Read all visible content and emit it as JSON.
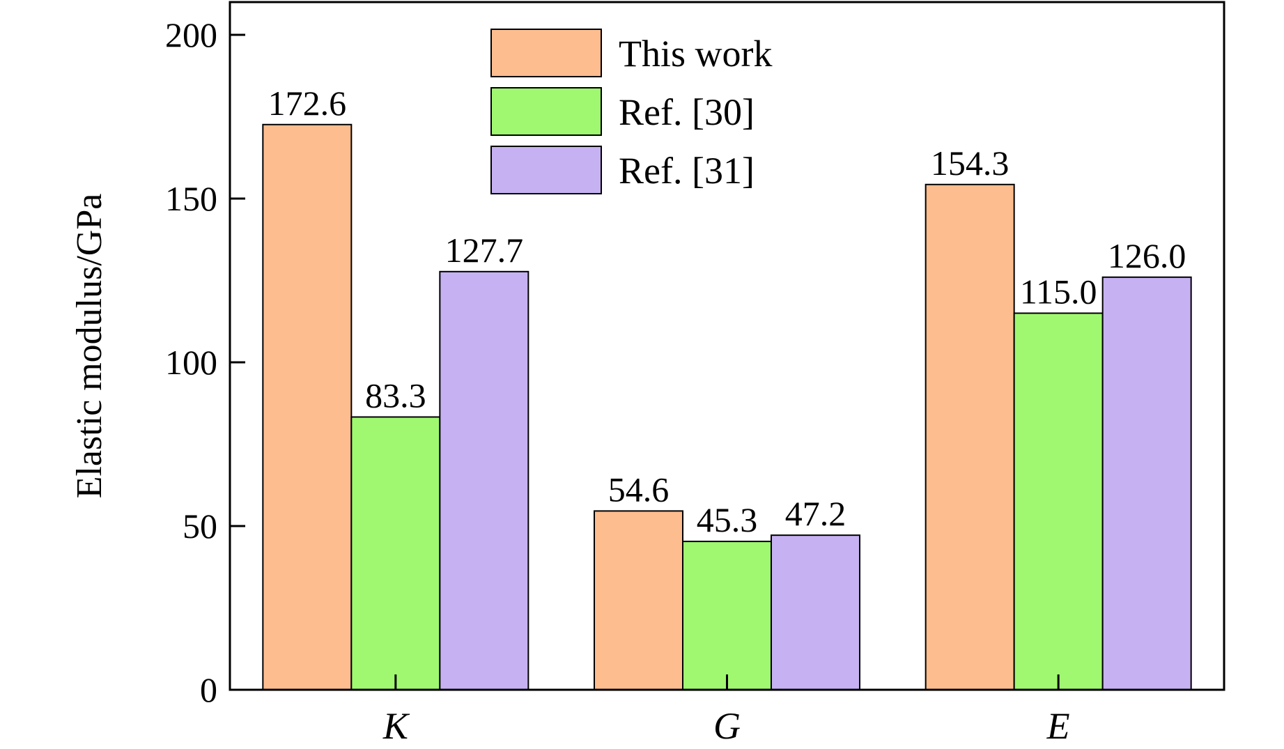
{
  "chart_data": {
    "type": "bar",
    "categories": [
      "K",
      "G",
      "E"
    ],
    "series": [
      {
        "name": "This work",
        "color": "#FDBD8E",
        "values": [
          172.6,
          54.6,
          154.3
        ],
        "labels": [
          "172.6",
          "54.6",
          "154.3"
        ]
      },
      {
        "name": "Ref. [30]",
        "color": "#A0F870",
        "values": [
          83.3,
          45.3,
          115.0
        ],
        "labels": [
          "83.3",
          "45.3",
          "115.0"
        ]
      },
      {
        "name": "Ref. [31]",
        "color": "#C6B2F2",
        "values": [
          127.7,
          47.2,
          126.0
        ],
        "labels": [
          "127.7",
          "47.2",
          "126.0"
        ]
      }
    ],
    "ylabel": "Elastic modulus/GPa",
    "xlabel": "",
    "ylim": [
      0,
      210
    ],
    "yticks": [
      0,
      50,
      100,
      150,
      200
    ],
    "ytick_labels": [
      "0",
      "50",
      "100",
      "150",
      "200"
    ],
    "legend_position": "top-center",
    "grid": false
  }
}
